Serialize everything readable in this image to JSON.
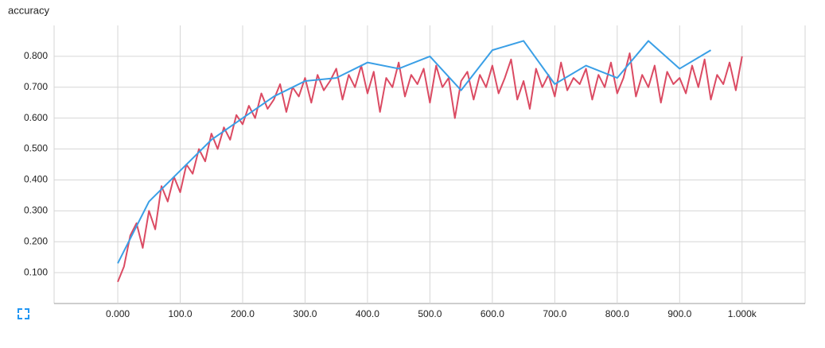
{
  "chart_data": {
    "type": "line",
    "title": "accuracy",
    "xlim": [
      -102,
      1101
    ],
    "ylim": [
      0,
      0.9
    ],
    "xticks": [
      {
        "value": 0,
        "label": "0.000"
      },
      {
        "value": 100,
        "label": "100.0"
      },
      {
        "value": 200,
        "label": "200.0"
      },
      {
        "value": 300,
        "label": "300.0"
      },
      {
        "value": 400,
        "label": "400.0"
      },
      {
        "value": 500,
        "label": "500.0"
      },
      {
        "value": 600,
        "label": "600.0"
      },
      {
        "value": 700,
        "label": "700.0"
      },
      {
        "value": 800,
        "label": "800.0"
      },
      {
        "value": 900,
        "label": "900.0"
      },
      {
        "value": 1000,
        "label": "1.000k"
      }
    ],
    "yticks": [
      {
        "value": 0.1,
        "label": "0.100"
      },
      {
        "value": 0.2,
        "label": "0.200"
      },
      {
        "value": 0.3,
        "label": "0.300"
      },
      {
        "value": 0.4,
        "label": "0.400"
      },
      {
        "value": 0.5,
        "label": "0.500"
      },
      {
        "value": 0.6,
        "label": "0.600"
      },
      {
        "value": 0.7,
        "label": "0.700"
      },
      {
        "value": 0.8,
        "label": "0.800"
      }
    ],
    "grid": true,
    "series": [
      {
        "color": "#db4b63",
        "x": [
          0,
          10,
          20,
          30,
          40,
          50,
          60,
          70,
          80,
          90,
          100,
          110,
          120,
          130,
          140,
          150,
          160,
          170,
          180,
          190,
          200,
          210,
          220,
          230,
          240,
          250,
          260,
          270,
          280,
          290,
          300,
          310,
          320,
          330,
          340,
          350,
          360,
          370,
          380,
          390,
          400,
          410,
          420,
          430,
          440,
          450,
          460,
          470,
          480,
          490,
          500,
          510,
          520,
          530,
          540,
          550,
          560,
          570,
          580,
          590,
          600,
          610,
          620,
          630,
          640,
          650,
          660,
          670,
          680,
          690,
          700,
          710,
          720,
          730,
          740,
          750,
          760,
          770,
          780,
          790,
          800,
          810,
          820,
          830,
          840,
          850,
          860,
          870,
          880,
          890,
          900,
          910,
          920,
          930,
          940,
          950,
          960,
          970,
          980,
          990,
          1000
        ],
        "values": [
          0.07,
          0.12,
          0.22,
          0.26,
          0.18,
          0.3,
          0.24,
          0.38,
          0.33,
          0.41,
          0.36,
          0.45,
          0.42,
          0.5,
          0.46,
          0.55,
          0.5,
          0.57,
          0.53,
          0.61,
          0.58,
          0.64,
          0.6,
          0.68,
          0.63,
          0.66,
          0.71,
          0.62,
          0.7,
          0.67,
          0.73,
          0.65,
          0.74,
          0.69,
          0.72,
          0.76,
          0.66,
          0.74,
          0.7,
          0.77,
          0.68,
          0.75,
          0.62,
          0.73,
          0.7,
          0.78,
          0.67,
          0.74,
          0.71,
          0.76,
          0.65,
          0.77,
          0.7,
          0.73,
          0.6,
          0.72,
          0.75,
          0.66,
          0.74,
          0.7,
          0.77,
          0.68,
          0.73,
          0.79,
          0.66,
          0.72,
          0.63,
          0.76,
          0.7,
          0.74,
          0.67,
          0.78,
          0.69,
          0.73,
          0.71,
          0.76,
          0.66,
          0.74,
          0.7,
          0.78,
          0.68,
          0.73,
          0.81,
          0.67,
          0.74,
          0.7,
          0.77,
          0.65,
          0.75,
          0.71,
          0.73,
          0.68,
          0.77,
          0.7,
          0.79,
          0.66,
          0.74,
          0.71,
          0.78,
          0.69,
          0.8
        ]
      },
      {
        "color": "#3a9fe6",
        "x": [
          0,
          50,
          100,
          150,
          200,
          250,
          300,
          350,
          400,
          450,
          500,
          550,
          600,
          650,
          700,
          750,
          800,
          850,
          900,
          950
        ],
        "values": [
          0.13,
          0.33,
          0.43,
          0.53,
          0.6,
          0.67,
          0.72,
          0.73,
          0.78,
          0.76,
          0.8,
          0.69,
          0.82,
          0.85,
          0.71,
          0.77,
          0.73,
          0.85,
          0.76,
          0.82
        ]
      }
    ]
  }
}
